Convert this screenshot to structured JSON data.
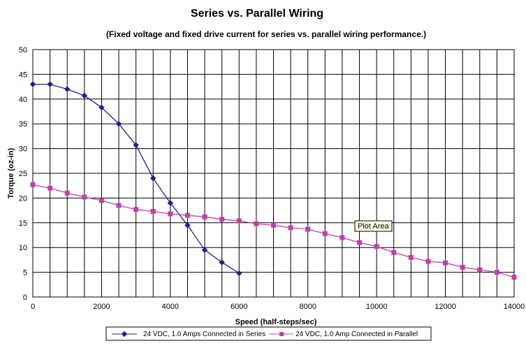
{
  "chart_data": {
    "type": "line",
    "title": "Series vs. Parallel Wiring",
    "subtitle": "(Fixed voltage and fixed drive current for series vs. parallel wiring performance.)",
    "xlabel": "Speed (half-steps/sec)",
    "ylabel": "Torque (oz-in)",
    "xlim": [
      0,
      14000
    ],
    "ylim": [
      0,
      50
    ],
    "x_ticks": [
      0,
      2000,
      4000,
      6000,
      8000,
      10000,
      12000,
      14000
    ],
    "x_tick_labels": [
      "0",
      "2000",
      "4000",
      "6000",
      "8000",
      "10000",
      "12000",
      "14000"
    ],
    "y_ticks": [
      0,
      5,
      10,
      15,
      20,
      25,
      30,
      35,
      40,
      45,
      50
    ],
    "y_tick_labels": [
      "0",
      "5",
      "10",
      "15",
      "20",
      "25",
      "30",
      "35",
      "40",
      "45",
      "50"
    ],
    "grid": true,
    "legend_position": "bottom",
    "tooltip": "Plot Area",
    "series": [
      {
        "name": "24 VDC, 1.0 Amps Connected in Series",
        "color": "#1f1f8c",
        "marker": "diamond",
        "x": [
          0,
          500,
          1000,
          1500,
          2000,
          2500,
          3000,
          3500,
          4000,
          4500,
          5000,
          5500,
          6000
        ],
        "y": [
          43,
          43,
          42,
          40.7,
          38.3,
          35,
          30.7,
          24,
          19,
          14.5,
          9.5,
          7,
          4.8
        ]
      },
      {
        "name": "24 VDC, 1.0 Amp Connected in  Parallel",
        "color": "#c040a8",
        "marker": "square",
        "x": [
          0,
          500,
          1000,
          1500,
          2000,
          2500,
          3000,
          3500,
          4000,
          4500,
          5000,
          5500,
          6000,
          6500,
          7000,
          7500,
          8000,
          8500,
          9000,
          9500,
          10000,
          10500,
          11000,
          11500,
          12000,
          12500,
          13000,
          13500,
          14000
        ],
        "y": [
          22.7,
          22,
          21,
          20.2,
          19.5,
          18.5,
          17.7,
          17.3,
          16.8,
          16.5,
          16.2,
          15.7,
          15.4,
          14.8,
          14.5,
          14,
          13.7,
          12.8,
          12,
          11,
          10.2,
          9,
          8,
          7.2,
          6.9,
          6,
          5.5,
          5,
          4
        ]
      }
    ]
  }
}
